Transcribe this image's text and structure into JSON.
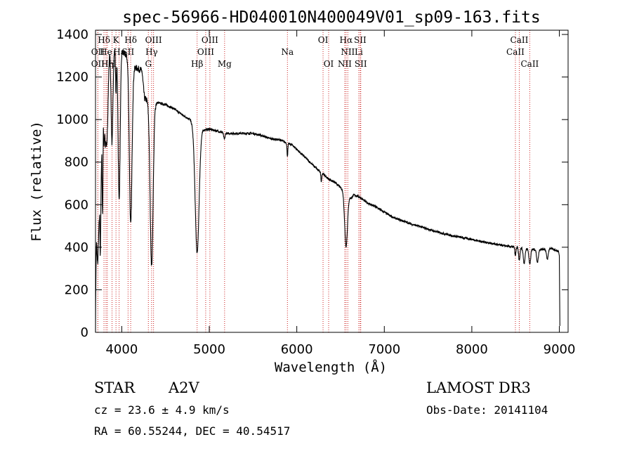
{
  "chart_data": {
    "type": "line",
    "title": "spec-56966-HD040010N400049V01_sp09-163.fits",
    "xlabel": "Wavelength (Å)",
    "ylabel": "Flux (relative)",
    "xlim": [
      3700,
      9100
    ],
    "ylim": [
      0,
      1420
    ],
    "xticks": [
      4000,
      5000,
      6000,
      7000,
      8000,
      9000
    ],
    "yticks": [
      0,
      200,
      400,
      600,
      800,
      1000,
      1200,
      1400
    ],
    "series": [
      {
        "name": "flux",
        "anchors": [
          [
            3700,
            20
          ],
          [
            3705,
            300
          ],
          [
            3712,
            480
          ],
          [
            3725,
            440
          ],
          [
            3735,
            520
          ],
          [
            3742,
            560
          ],
          [
            3748,
            640
          ],
          [
            3755,
            520
          ],
          [
            3765,
            780
          ],
          [
            3772,
            1000
          ],
          [
            3782,
            760
          ],
          [
            3790,
            1100
          ],
          [
            3800,
            1150
          ],
          [
            3812,
            900
          ],
          [
            3822,
            1000
          ],
          [
            3835,
            1300
          ],
          [
            3850,
            1280
          ],
          [
            3865,
            1320
          ],
          [
            3880,
            1300
          ],
          [
            3900,
            1320
          ],
          [
            3920,
            1330
          ],
          [
            3950,
            1340
          ],
          [
            3980,
            1340
          ],
          [
            4000,
            1330
          ],
          [
            4020,
            1310
          ],
          [
            4060,
            1300
          ],
          [
            4120,
            1250
          ],
          [
            4180,
            1240
          ],
          [
            4230,
            1230
          ],
          [
            4260,
            1100
          ],
          [
            4300,
            1090
          ],
          [
            4400,
            1080
          ],
          [
            4500,
            1070
          ],
          [
            4600,
            1050
          ],
          [
            4700,
            1020
          ],
          [
            4780,
            1000
          ],
          [
            4820,
            975
          ],
          [
            4900,
            950
          ],
          [
            5000,
            955
          ],
          [
            5100,
            945
          ],
          [
            5200,
            935
          ],
          [
            5300,
            935
          ],
          [
            5400,
            935
          ],
          [
            5500,
            935
          ],
          [
            5600,
            925
          ],
          [
            5700,
            910
          ],
          [
            5800,
            905
          ],
          [
            5860,
            895
          ],
          [
            5950,
            880
          ],
          [
            6050,
            840
          ],
          [
            6150,
            800
          ],
          [
            6250,
            760
          ],
          [
            6300,
            745
          ],
          [
            6350,
            725
          ],
          [
            6450,
            700
          ],
          [
            6550,
            660
          ],
          [
            6620,
            630
          ],
          [
            6650,
            645
          ],
          [
            6700,
            640
          ],
          [
            6800,
            610
          ],
          [
            6900,
            590
          ],
          [
            7000,
            565
          ],
          [
            7100,
            540
          ],
          [
            7200,
            525
          ],
          [
            7300,
            510
          ],
          [
            7400,
            498
          ],
          [
            7500,
            485
          ],
          [
            7600,
            472
          ],
          [
            7700,
            462
          ],
          [
            7800,
            452
          ],
          [
            7900,
            445
          ],
          [
            8000,
            437
          ],
          [
            8100,
            428
          ],
          [
            8200,
            420
          ],
          [
            8300,
            412
          ],
          [
            8400,
            405
          ],
          [
            8500,
            400
          ],
          [
            8600,
            395
          ],
          [
            8700,
            390
          ],
          [
            8800,
            390
          ],
          [
            8900,
            395
          ],
          [
            8990,
            380
          ]
        ],
        "absorption": [
          [
            3725,
            10,
            120
          ],
          [
            3755,
            6,
            180
          ],
          [
            3778,
            6,
            260
          ],
          [
            3798,
            6,
            250
          ],
          [
            3835,
            9,
            350
          ],
          [
            3889,
            10,
            420
          ],
          [
            3934,
            5,
            200
          ],
          [
            3970,
            12,
            720
          ],
          [
            4102,
            15,
            760
          ],
          [
            4341,
            17,
            770
          ],
          [
            4861,
            22,
            590
          ],
          [
            5172,
            8,
            30
          ],
          [
            5893,
            5,
            60
          ],
          [
            6280,
            5,
            40
          ],
          [
            6563,
            16,
            250
          ],
          [
            8498,
            6,
            40
          ],
          [
            8542,
            8,
            60
          ],
          [
            8598,
            10,
            70
          ],
          [
            8662,
            10,
            70
          ],
          [
            8750,
            10,
            60
          ],
          [
            8863,
            10,
            50
          ]
        ],
        "tail": [
          [
            9000,
            360
          ],
          [
            9006,
            30
          ]
        ]
      }
    ],
    "lines_top": [
      {
        "label": "Hδ",
        "x": 3797
      },
      {
        "label": "K",
        "x": 3934
      },
      {
        "label": "Hδ",
        "x": 4102
      },
      {
        "label": "OIII",
        "x": 4363
      },
      {
        "label": "OIII",
        "x": 5007
      },
      {
        "label": "OI",
        "x": 6300
      },
      {
        "label": "Hα",
        "x": 6563
      },
      {
        "label": "SII",
        "x": 6724
      },
      {
        "label": "CaII",
        "x": 8542
      }
    ],
    "lines_mid": [
      {
        "label": "OII",
        "x": 3727
      },
      {
        "label": "He",
        "x": 3820
      },
      {
        "label": "Hε",
        "x": 3970
      },
      {
        "label": "SII",
        "x": 4072
      },
      {
        "label": "Hγ",
        "x": 4341
      },
      {
        "label": "OIII",
        "x": 4959
      },
      {
        "label": "Na",
        "x": 5893
      },
      {
        "label": "NII",
        "x": 6583
      },
      {
        "label": "Li",
        "x": 6708
      },
      {
        "label": "CaII",
        "x": 8498
      }
    ],
    "lines_low": [
      {
        "label": "OII",
        "x": 3727
      },
      {
        "label": "Hη",
        "x": 3835
      },
      {
        "label": "H",
        "x": 3889
      },
      {
        "label": "G",
        "x": 4304
      },
      {
        "label": "Hβ",
        "x": 4861
      },
      {
        "label": "Mg",
        "x": 5175
      },
      {
        "label": "OI",
        "x": 6364
      },
      {
        "label": "NII",
        "x": 6548
      },
      {
        "label": "SII",
        "x": 6731
      },
      {
        "label": "CaII",
        "x": 8662
      }
    ]
  },
  "info": {
    "class_label": "STAR",
    "subclass": "A2V",
    "survey": "LAMOST DR3",
    "cz": "cz = 23.6 ± 4.9 km/s",
    "obs_date": "Obs-Date: 20141104",
    "radec": "RA =  60.55244, DEC =  40.54517"
  }
}
